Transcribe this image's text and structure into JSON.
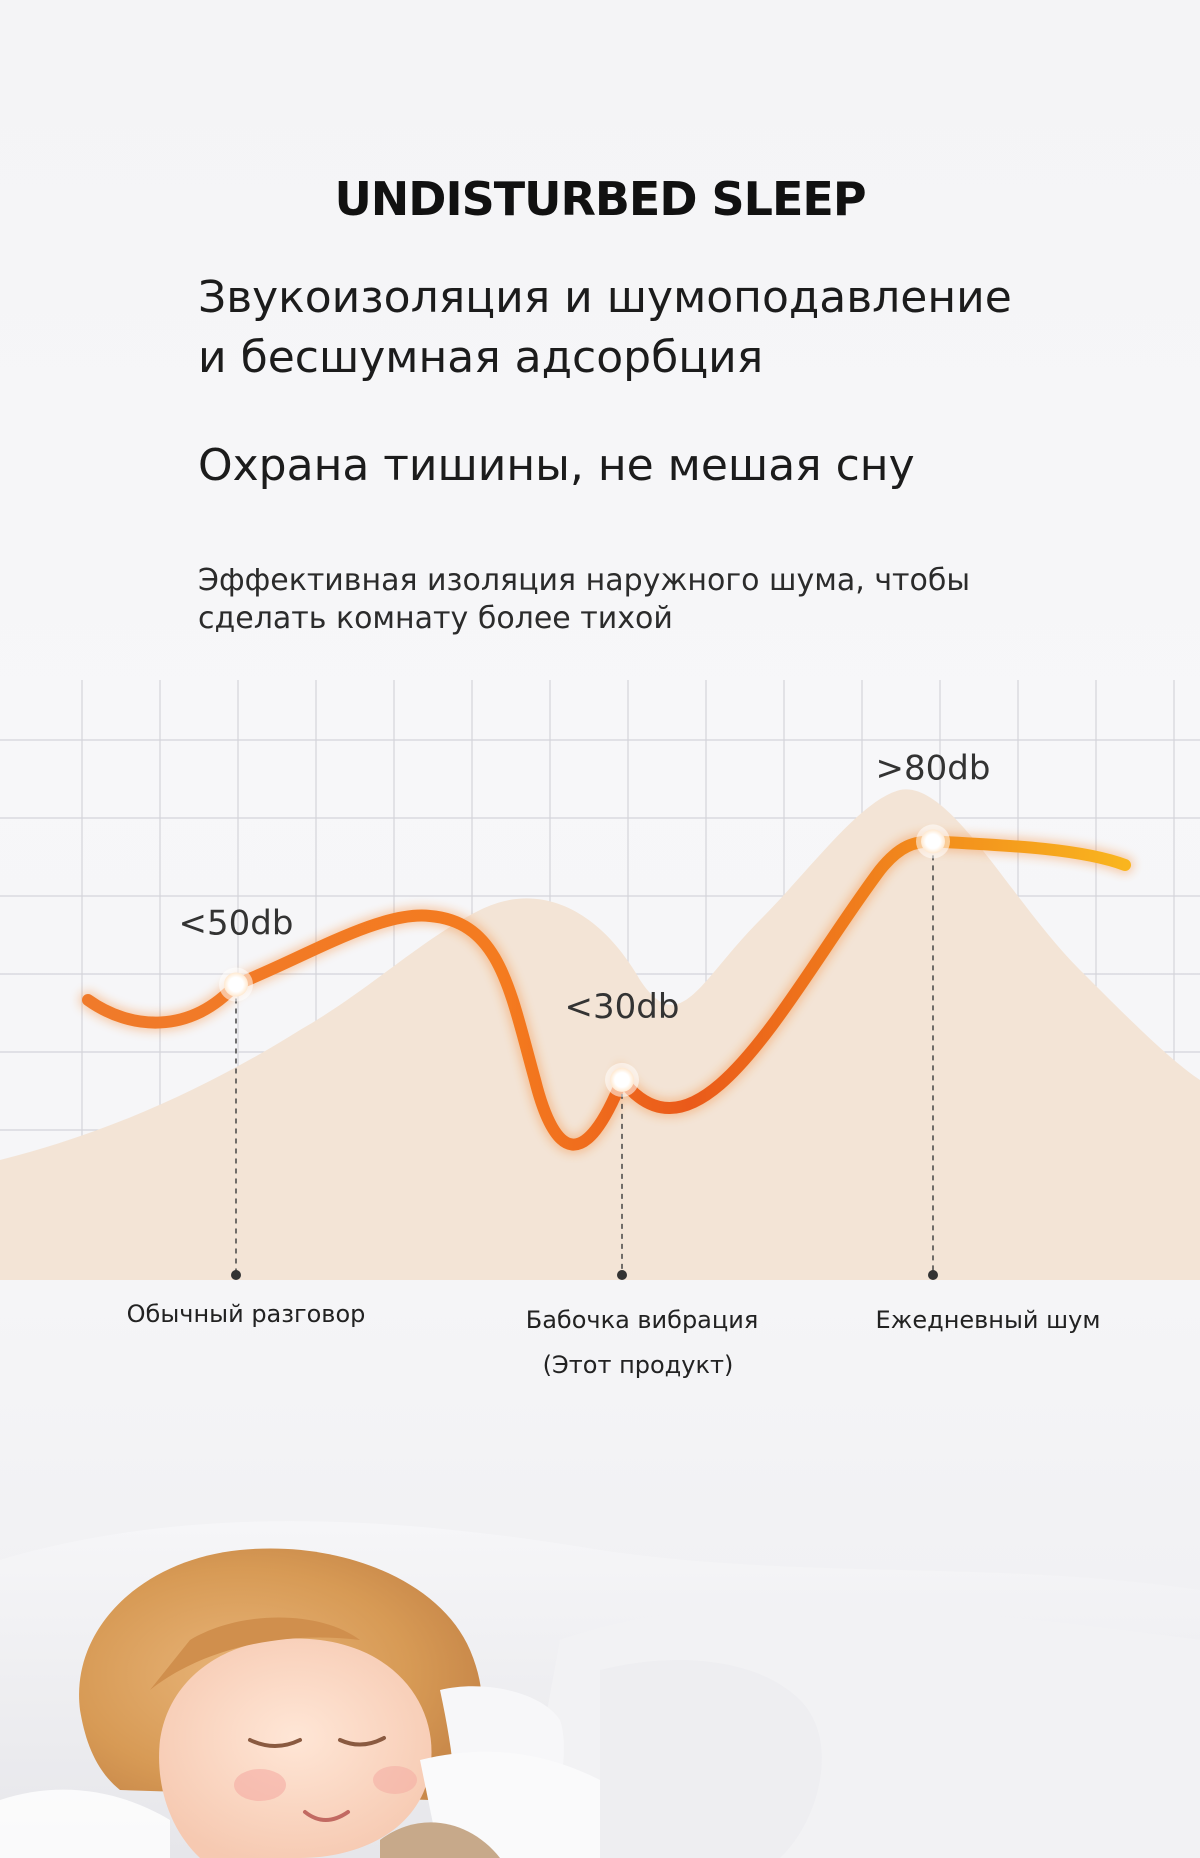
{
  "headline": "UNDISTURBED SLEEP",
  "subtitle": {
    "line1": "Звукоизоляция и шумоподавление",
    "line2": "и бесшумная адсорбция"
  },
  "slogan": "Охрана тишины, не мешая сну",
  "description": {
    "line1": "Эффективная изоляция наружного шума, чтобы",
    "line2": "сделать комнату более тихой"
  },
  "colors": {
    "curve_start": "#f07a2a",
    "curve_mid": "#f47b1f",
    "curve_low": "#ea5a1a",
    "curve_end": "#f9b51e",
    "grid": "#d4d4da",
    "mountain": "#f3e4d6"
  },
  "chart_data": {
    "type": "line",
    "categories": [
      "Обычный разговор",
      "Бабочка вибрация",
      "Ежедневный шум"
    ],
    "category_note": "(Этот продукт)",
    "points": [
      {
        "category": "Обычный разговор",
        "label": "<50db",
        "value": 50
      },
      {
        "category": "Бабочка вибрация",
        "label": "<30db",
        "value": 30
      },
      {
        "category": "Ежедневный шум",
        "label": ">80db",
        "value": 80
      }
    ],
    "grid": true,
    "legend": "none"
  },
  "photo": {
    "subject": "sleeping-child-icon"
  }
}
